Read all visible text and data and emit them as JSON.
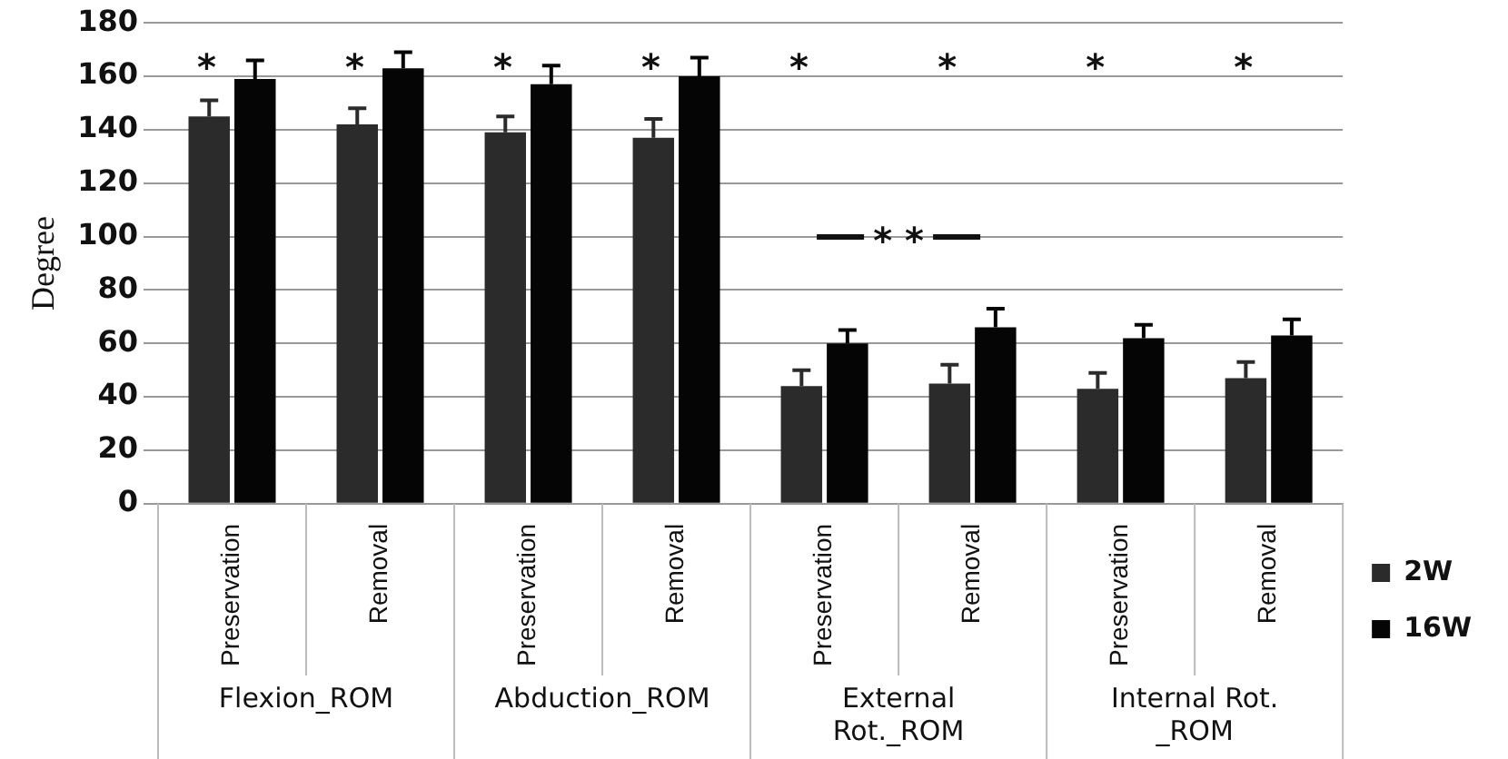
{
  "chart_data": {
    "type": "bar",
    "ylabel": "Degree",
    "categories": [
      "Preservation",
      "Removal",
      "Preservation",
      "Removal",
      "Preservation",
      "Removal",
      "Preservation",
      "Removal"
    ],
    "series": [
      {
        "name": "2W",
        "color": "#2b2b2b",
        "values": [
          145,
          142,
          139,
          137,
          44,
          45,
          43,
          47
        ],
        "errors": [
          [
            145,
            151
          ],
          [
            142,
            148
          ],
          [
            139,
            145
          ],
          [
            137,
            144
          ],
          [
            44,
            50
          ],
          [
            45,
            52
          ],
          [
            43,
            49
          ],
          [
            47,
            53
          ]
        ]
      },
      {
        "name": "16W",
        "color": "#050505",
        "values": [
          159,
          163,
          157,
          160,
          60,
          66,
          62,
          63
        ],
        "errors": [
          [
            159,
            166
          ],
          [
            163,
            169
          ],
          [
            157,
            164
          ],
          [
            160,
            167
          ],
          [
            60,
            65
          ],
          [
            66,
            73
          ],
          [
            62,
            67
          ],
          [
            63,
            69
          ]
        ]
      }
    ],
    "ylim": [
      0,
      180
    ],
    "yticks": [
      0,
      20,
      40,
      60,
      80,
      100,
      120,
      140,
      160,
      180
    ],
    "grid": "y",
    "legend": "right",
    "annotations": [
      "Flexion_ROM",
      "Abduction_ROM",
      "External Rot._ROM",
      "Internal Rot. _ROM",
      "*",
      "*",
      "*",
      "*",
      "*",
      "*",
      "*",
      "*",
      "* *"
    ]
  }
}
